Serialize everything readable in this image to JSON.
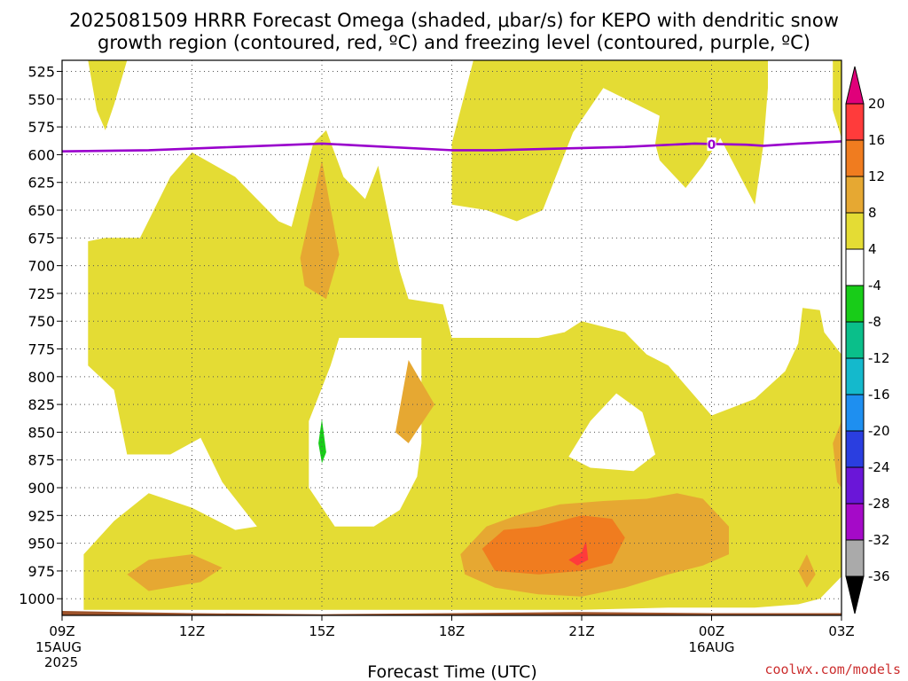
{
  "chart_data": {
    "type": "heatmap",
    "title_line1": "2025081509 HRRR Forecast Omega (shaded, μbar/s) for KEPO with dendritic snow",
    "title_line2": "growth region (contoured, red, ºC) and freezing level (contoured, purple, ºC)",
    "xlabel": "Forecast Time (UTC)",
    "y_ticks": [
      "525",
      "550",
      "575",
      "600",
      "625",
      "650",
      "675",
      "700",
      "725",
      "750",
      "775",
      "800",
      "825",
      "850",
      "875",
      "900",
      "925",
      "950",
      "975",
      "1000"
    ],
    "y_values": [
      525,
      550,
      575,
      600,
      625,
      650,
      675,
      700,
      725,
      750,
      775,
      800,
      825,
      850,
      875,
      900,
      925,
      950,
      975,
      1000
    ],
    "ylim": [
      515,
      1015
    ],
    "x_ticks": [
      {
        "hour": 0,
        "label": "09Z",
        "sub1": "15AUG",
        "sub2": "2025"
      },
      {
        "hour": 3,
        "label": "12Z",
        "sub1": "",
        "sub2": ""
      },
      {
        "hour": 6,
        "label": "15Z",
        "sub1": "",
        "sub2": ""
      },
      {
        "hour": 9,
        "label": "18Z",
        "sub1": "",
        "sub2": ""
      },
      {
        "hour": 12,
        "label": "21Z",
        "sub1": "",
        "sub2": ""
      },
      {
        "hour": 15,
        "label": "00Z",
        "sub1": "16AUG",
        "sub2": ""
      },
      {
        "hour": 18,
        "label": "03Z",
        "sub1": "",
        "sub2": ""
      }
    ],
    "xlim": [
      0,
      18
    ],
    "freezing_level": {
      "label": "0",
      "color": "#9900cc",
      "points": [
        [
          0,
          597
        ],
        [
          2,
          596
        ],
        [
          4,
          593
        ],
        [
          6,
          590
        ],
        [
          7,
          592
        ],
        [
          9,
          596
        ],
        [
          10,
          596
        ],
        [
          12,
          594
        ],
        [
          13,
          593
        ],
        [
          14.6,
          590
        ],
        [
          15.8,
          591
        ],
        [
          16.2,
          592
        ],
        [
          17,
          590
        ],
        [
          18,
          588
        ]
      ]
    },
    "colorbar": {
      "levels": [
        "20",
        "16",
        "12",
        "8",
        "4",
        "-4",
        "-8",
        "-12",
        "-16",
        "-20",
        "-24",
        "-28",
        "-32",
        "-36"
      ],
      "bands": [
        {
          "lo": 20,
          "hi": 99,
          "color": "#e0007a"
        },
        {
          "lo": 16,
          "hi": 20,
          "color": "#ff3b3b"
        },
        {
          "lo": 12,
          "hi": 16,
          "color": "#f07c1f"
        },
        {
          "lo": 8,
          "hi": 12,
          "color": "#e6a832"
        },
        {
          "lo": 4,
          "hi": 8,
          "color": "#e4dc34"
        },
        {
          "lo": -4,
          "hi": 4,
          "color": "#ffffff"
        },
        {
          "lo": -8,
          "hi": -4,
          "color": "#18cc18"
        },
        {
          "lo": -12,
          "hi": -8,
          "color": "#0abf8a"
        },
        {
          "lo": -16,
          "hi": -12,
          "color": "#14b9cc"
        },
        {
          "lo": -20,
          "hi": -16,
          "color": "#1e8ff0"
        },
        {
          "lo": -24,
          "hi": -20,
          "color": "#2a3ee0"
        },
        {
          "lo": -28,
          "hi": -24,
          "color": "#6a16d8"
        },
        {
          "lo": -32,
          "hi": -28,
          "color": "#a50ac8"
        },
        {
          "lo": -36,
          "hi": -32,
          "color": "#aaaaaa"
        },
        {
          "lo": -99,
          "hi": -36,
          "color": "#000000"
        }
      ]
    },
    "shaded_regions": [
      {
        "band": "4",
        "color": "#e4dc34",
        "points": [
          [
            0.6,
            515
          ],
          [
            1.5,
            515
          ],
          [
            1.2,
            555
          ],
          [
            1.0,
            578
          ],
          [
            0.8,
            560
          ]
        ]
      },
      {
        "band": "4",
        "color": "#e4dc34",
        "points": [
          [
            9.5,
            515
          ],
          [
            16.3,
            515
          ],
          [
            16.3,
            540
          ],
          [
            16.2,
            590
          ],
          [
            16.0,
            645
          ],
          [
            15.8,
            630
          ],
          [
            15.2,
            585
          ],
          [
            14.8,
            610
          ],
          [
            14.4,
            630
          ],
          [
            13.8,
            605
          ],
          [
            13.7,
            590
          ],
          [
            13.8,
            565
          ],
          [
            12.5,
            540
          ],
          [
            11.8,
            580
          ],
          [
            11.1,
            650
          ],
          [
            10.5,
            660
          ],
          [
            9.8,
            650
          ],
          [
            9.0,
            645
          ],
          [
            9.0,
            590
          ],
          [
            9.2,
            560
          ]
        ]
      },
      {
        "band": "4",
        "color": "#e4dc34",
        "points": [
          [
            17.8,
            515
          ],
          [
            18,
            515
          ],
          [
            18,
            585
          ],
          [
            17.8,
            560
          ]
        ]
      },
      {
        "band": "4",
        "color": "#e4dc34",
        "points": [
          [
            0.6,
            678
          ],
          [
            1,
            675
          ],
          [
            1.8,
            675
          ],
          [
            2.5,
            620
          ],
          [
            3,
            598
          ],
          [
            4,
            620
          ],
          [
            5,
            660
          ],
          [
            5.3,
            665
          ],
          [
            5.8,
            590
          ],
          [
            6.1,
            578
          ],
          [
            6.5,
            620
          ],
          [
            7,
            640
          ],
          [
            7.3,
            610
          ],
          [
            7.8,
            705
          ],
          [
            8,
            730
          ],
          [
            8.8,
            735
          ],
          [
            9,
            765
          ],
          [
            10,
            765
          ],
          [
            11,
            765
          ],
          [
            11.6,
            760
          ],
          [
            12,
            750
          ],
          [
            13,
            760
          ],
          [
            13.5,
            780
          ],
          [
            14,
            790
          ],
          [
            15,
            835
          ],
          [
            16,
            820
          ],
          [
            16.7,
            795
          ],
          [
            17,
            770
          ],
          [
            17.1,
            738
          ],
          [
            17.5,
            740
          ],
          [
            17.6,
            760
          ],
          [
            18,
            780
          ],
          [
            18,
            980
          ],
          [
            17.5,
            1000
          ],
          [
            17,
            1005
          ],
          [
            16,
            1008
          ],
          [
            14,
            1008
          ],
          [
            12,
            1010
          ],
          [
            10,
            1010
          ],
          [
            8,
            1010
          ],
          [
            6,
            1010
          ],
          [
            4,
            1010
          ],
          [
            2,
            1010
          ],
          [
            0.5,
            1010
          ],
          [
            0.5,
            960
          ],
          [
            1.2,
            930
          ],
          [
            2,
            905
          ],
          [
            3,
            918
          ],
          [
            4,
            938
          ],
          [
            4.5,
            935
          ],
          [
            3.7,
            895
          ],
          [
            3.2,
            855
          ],
          [
            2.5,
            870
          ],
          [
            1.5,
            870
          ],
          [
            1.2,
            812
          ],
          [
            0.6,
            790
          ],
          [
            0.6,
            720
          ]
        ]
      },
      {
        "band": "-4",
        "color": "#ffffff",
        "points": [
          [
            5.7,
            840
          ],
          [
            6.2,
            790
          ],
          [
            6.4,
            765
          ],
          [
            8.3,
            765
          ],
          [
            8.3,
            782
          ],
          [
            8.3,
            860
          ],
          [
            8.2,
            890
          ],
          [
            7.8,
            920
          ],
          [
            7.2,
            935
          ],
          [
            6.3,
            935
          ],
          [
            5.7,
            900
          ]
        ]
      },
      {
        "band": "-4",
        "color": "#ffffff",
        "points": [
          [
            11.7,
            872
          ],
          [
            12.2,
            840
          ],
          [
            12.8,
            815
          ],
          [
            13.4,
            832
          ],
          [
            13.7,
            870
          ],
          [
            13.2,
            885
          ],
          [
            12.2,
            882
          ]
        ]
      },
      {
        "band": "8",
        "color": "#e6a832",
        "points": [
          [
            5.5,
            693
          ],
          [
            6,
            605
          ],
          [
            6.4,
            690
          ],
          [
            6.1,
            730
          ],
          [
            5.6,
            718
          ]
        ]
      },
      {
        "band": "8",
        "color": "#e6a832",
        "points": [
          [
            7.7,
            850
          ],
          [
            8.0,
            785
          ],
          [
            8.6,
            825
          ],
          [
            8.0,
            860
          ]
        ]
      },
      {
        "band": "8",
        "color": "#e6a832",
        "points": [
          [
            1.5,
            978
          ],
          [
            2,
            965
          ],
          [
            3,
            960
          ],
          [
            3.7,
            972
          ],
          [
            3.2,
            985
          ],
          [
            2,
            993
          ]
        ]
      },
      {
        "band": "8",
        "color": "#e6a832",
        "points": [
          [
            9.2,
            960
          ],
          [
            9.8,
            935
          ],
          [
            10.5,
            925
          ],
          [
            11.5,
            915
          ],
          [
            12.5,
            912
          ],
          [
            13.5,
            910
          ],
          [
            14.2,
            905
          ],
          [
            14.8,
            910
          ],
          [
            15.4,
            935
          ],
          [
            15.4,
            960
          ],
          [
            14.8,
            970
          ],
          [
            14,
            978
          ],
          [
            13,
            990
          ],
          [
            12,
            998
          ],
          [
            11,
            996
          ],
          [
            10,
            990
          ],
          [
            9.3,
            978
          ]
        ]
      },
      {
        "band": "8",
        "color": "#e6a832",
        "points": [
          [
            17.8,
            860
          ],
          [
            18,
            840
          ],
          [
            18,
            900
          ],
          [
            17.9,
            895
          ]
        ]
      },
      {
        "band": "8",
        "color": "#e6a832",
        "points": [
          [
            17.0,
            975
          ],
          [
            17.2,
            960
          ],
          [
            17.4,
            978
          ],
          [
            17.2,
            990
          ]
        ]
      },
      {
        "band": "12",
        "color": "#f07c1f",
        "points": [
          [
            9.7,
            955
          ],
          [
            10.2,
            938
          ],
          [
            11,
            935
          ],
          [
            12,
            925
          ],
          [
            12.7,
            928
          ],
          [
            13.0,
            945
          ],
          [
            12.7,
            968
          ],
          [
            12,
            975
          ],
          [
            11,
            978
          ],
          [
            10,
            975
          ]
        ]
      },
      {
        "band": "16",
        "color": "#ff3b3b",
        "points": [
          [
            11.7,
            965
          ],
          [
            12.0,
            958
          ],
          [
            12.1,
            948
          ],
          [
            12.15,
            965
          ],
          [
            11.9,
            970
          ]
        ]
      },
      {
        "band": "-8",
        "color": "#18cc18",
        "points": [
          [
            5.92,
            860
          ],
          [
            6.0,
            838
          ],
          [
            6.1,
            868
          ],
          [
            6.0,
            878
          ]
        ]
      }
    ],
    "terrain_color": "#9c522a",
    "terrain_points": [
      [
        0,
        1011
      ],
      [
        3,
        1013
      ],
      [
        6,
        1014
      ],
      [
        9,
        1013
      ],
      [
        12,
        1012
      ],
      [
        15,
        1013
      ],
      [
        18,
        1013
      ]
    ]
  },
  "credit": "coolwx.com/models",
  "credit_color": "#cc2f2f"
}
